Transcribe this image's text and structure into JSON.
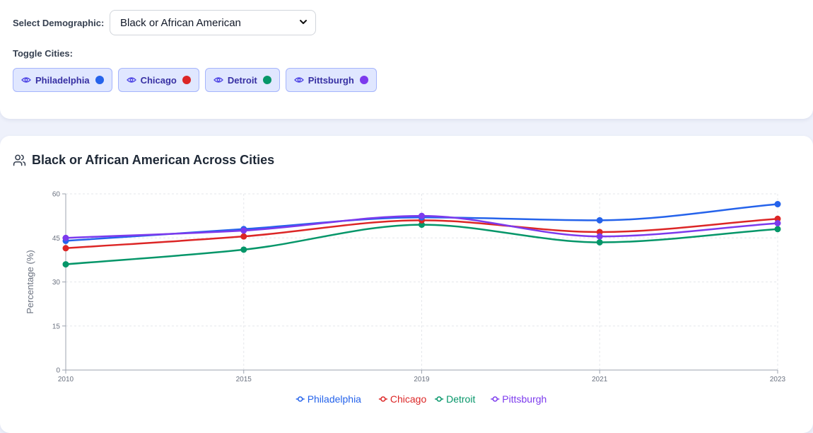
{
  "controls": {
    "select_label": "Select Demographic:",
    "selected_demographic": "Black or African American",
    "toggle_label": "Toggle Cities:",
    "cities": [
      {
        "name": "Philadelphia",
        "color": "#2563eb"
      },
      {
        "name": "Chicago",
        "color": "#dc2626"
      },
      {
        "name": "Detroit",
        "color": "#059669"
      },
      {
        "name": "Pittsburgh",
        "color": "#7c3aed"
      }
    ]
  },
  "chart": {
    "title": "Black or African American Across Cities"
  },
  "chart_data": {
    "type": "line",
    "title": "Black or African American Across Cities",
    "xlabel": "",
    "ylabel": "Percentage (%)",
    "x": [
      "2010",
      "2015",
      "2019",
      "2021",
      "2023"
    ],
    "ylim": [
      0,
      60
    ],
    "yticks": [
      "0",
      "15",
      "30",
      "45",
      "60"
    ],
    "grid": true,
    "legend_position": "bottom",
    "series": [
      {
        "name": "Philadelphia",
        "color": "#2563eb",
        "values": [
          44,
          48,
          52,
          51,
          56.5
        ]
      },
      {
        "name": "Chicago",
        "color": "#dc2626",
        "values": [
          41.5,
          45.5,
          51,
          47,
          51.5
        ]
      },
      {
        "name": "Detroit",
        "color": "#059669",
        "values": [
          36,
          41,
          49.5,
          43.5,
          48
        ]
      },
      {
        "name": "Pittsburgh",
        "color": "#7c3aed",
        "values": [
          45,
          47.5,
          52.5,
          45.5,
          50
        ]
      }
    ]
  }
}
